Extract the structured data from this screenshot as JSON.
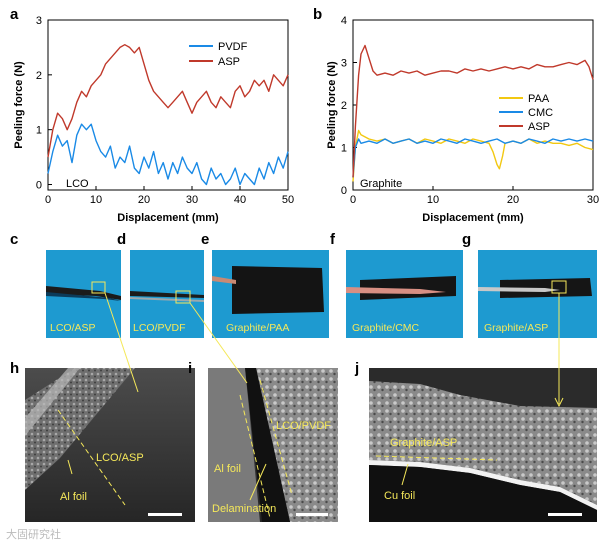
{
  "panels": {
    "a": "a",
    "b": "b",
    "c": "c",
    "d": "d",
    "e": "e",
    "f": "f",
    "g": "g",
    "h": "h",
    "i": "i",
    "j": "j"
  },
  "photos": {
    "c": "LCO/ASP",
    "d": "LCO/PVDF",
    "e": "Graphite/PAA",
    "f": "Graphite/CMC",
    "g": "Graphite/ASP"
  },
  "sem": {
    "h": {
      "film": "LCO/ASP",
      "foil": "Al foil"
    },
    "i": {
      "film": "LCO/PVDF",
      "foil": "Al foil",
      "note": "Delamination"
    },
    "j": {
      "film": "Graphite/ASP",
      "foil": "Cu foil"
    }
  },
  "watermark": "大固研究社",
  "colors": {
    "blue": "#1a8ae6",
    "red": "#c0392b",
    "yellow": "#f2c811",
    "photo_bg": "#1e9ad0"
  },
  "chart_data": [
    {
      "id": "a",
      "type": "line",
      "xlabel": "Displacement (mm)",
      "ylabel": "Peeling force (N)",
      "xlim": [
        0,
        50
      ],
      "ylim": [
        -0.1,
        3
      ],
      "xticks": [
        0,
        10,
        20,
        30,
        40,
        50
      ],
      "yticks": [
        0,
        1,
        2,
        3
      ],
      "annotation": "LCO",
      "legend_position": "top-right",
      "series": [
        {
          "name": "PVDF",
          "color": "#1a8ae6",
          "x": [
            0,
            1,
            2,
            3,
            4,
            5,
            6,
            7,
            8,
            9,
            10,
            11,
            12,
            13,
            14,
            15,
            16,
            17,
            18,
            19,
            20,
            21,
            22,
            23,
            24,
            25,
            26,
            27,
            28,
            29,
            30,
            31,
            32,
            33,
            34,
            35,
            36,
            37,
            38,
            39,
            40,
            41,
            42,
            43,
            44,
            45,
            46,
            47,
            48,
            49,
            50
          ],
          "y": [
            0.2,
            0.6,
            0.9,
            0.7,
            0.8,
            0.4,
            0.9,
            1.1,
            1.0,
            1.1,
            0.8,
            0.6,
            0.5,
            0.7,
            0.3,
            0.5,
            0.4,
            0.7,
            0.3,
            0.2,
            0.5,
            0.3,
            0.6,
            0.2,
            0.4,
            0.1,
            0.4,
            0.2,
            0.5,
            0.3,
            0.2,
            0.4,
            0.1,
            0.0,
            0.3,
            0.1,
            0.2,
            0.0,
            0.1,
            0.3,
            0.0,
            0.2,
            0.1,
            0.0,
            0.3,
            0.1,
            0.4,
            0.2,
            0.5,
            0.3,
            0.6
          ]
        },
        {
          "name": "ASP",
          "color": "#c0392b",
          "x": [
            0,
            1,
            2,
            3,
            4,
            5,
            6,
            7,
            8,
            9,
            10,
            11,
            12,
            13,
            14,
            15,
            16,
            17,
            18,
            19,
            20,
            21,
            22,
            23,
            24,
            25,
            26,
            27,
            28,
            29,
            30,
            31,
            32,
            33,
            34,
            35,
            36,
            37,
            38,
            39,
            40,
            41,
            42,
            43,
            44,
            45,
            46,
            47,
            48,
            49,
            50
          ],
          "y": [
            0.5,
            1.0,
            1.3,
            1.2,
            1.0,
            1.2,
            1.5,
            1.7,
            1.6,
            1.8,
            1.9,
            2.0,
            2.2,
            2.3,
            2.4,
            2.5,
            2.55,
            2.5,
            2.4,
            2.5,
            2.2,
            1.9,
            1.7,
            1.6,
            1.5,
            1.4,
            1.5,
            1.6,
            1.7,
            1.5,
            1.3,
            1.5,
            1.6,
            1.7,
            1.5,
            1.4,
            1.6,
            1.5,
            1.4,
            1.7,
            1.8,
            1.6,
            1.7,
            1.9,
            1.8,
            1.9,
            1.7,
            2.0,
            1.9,
            1.8,
            2.0
          ]
        }
      ]
    },
    {
      "id": "b",
      "type": "line",
      "xlabel": "Displacement (mm)",
      "ylabel": "Peeling force (N)",
      "xlim": [
        0,
        30
      ],
      "ylim": [
        0,
        4
      ],
      "xticks": [
        0,
        10,
        20,
        30
      ],
      "yticks": [
        0,
        1,
        2,
        3,
        4
      ],
      "annotation": "Graphite",
      "legend_position": "center-right",
      "series": [
        {
          "name": "PAA",
          "color": "#f2c811",
          "x": [
            0,
            0.3,
            0.7,
            1,
            2,
            3,
            4,
            5,
            6,
            7,
            8,
            9,
            10,
            11,
            12,
            13,
            14,
            15,
            16,
            17,
            17.5,
            18,
            18.3,
            18.7,
            19,
            20,
            21,
            22,
            23,
            24,
            25,
            26,
            27,
            28,
            29,
            30
          ],
          "y": [
            0.2,
            1.0,
            1.4,
            1.3,
            1.2,
            1.15,
            1.2,
            1.1,
            1.15,
            1.2,
            1.1,
            1.2,
            1.15,
            1.1,
            1.2,
            1.15,
            1.1,
            1.2,
            1.15,
            1.1,
            0.9,
            0.6,
            0.5,
            0.8,
            1.1,
            1.15,
            1.1,
            1.2,
            1.1,
            1.15,
            1.1,
            1.1,
            1.05,
            1.1,
            1.0,
            0.95
          ]
        },
        {
          "name": "CMC",
          "color": "#1a8ae6",
          "x": [
            0,
            0.3,
            0.7,
            1,
            2,
            3,
            4,
            5,
            6,
            7,
            8,
            9,
            10,
            11,
            12,
            13,
            14,
            15,
            16,
            17,
            18,
            19,
            20,
            21,
            22,
            23,
            24,
            25,
            26,
            27,
            28,
            29,
            30
          ],
          "y": [
            0.3,
            1.0,
            1.2,
            1.1,
            1.15,
            1.1,
            1.2,
            1.1,
            1.15,
            1.2,
            1.1,
            1.15,
            1.1,
            1.2,
            1.15,
            1.1,
            1.2,
            1.15,
            1.1,
            1.15,
            1.2,
            1.1,
            1.15,
            1.1,
            1.2,
            1.15,
            1.1,
            1.2,
            1.15,
            1.2,
            1.15,
            1.2,
            1.15
          ]
        },
        {
          "name": "ASP",
          "color": "#c0392b",
          "x": [
            0,
            0.3,
            0.7,
            1,
            1.5,
            2,
            2.5,
            3,
            4,
            5,
            6,
            7,
            8,
            9,
            10,
            11,
            12,
            13,
            14,
            15,
            16,
            17,
            18,
            19,
            20,
            21,
            22,
            23,
            24,
            25,
            26,
            27,
            28,
            29,
            29.5,
            30
          ],
          "y": [
            0.3,
            1.5,
            2.7,
            3.2,
            3.4,
            3.1,
            2.8,
            2.7,
            2.75,
            2.7,
            2.8,
            2.75,
            2.8,
            2.7,
            2.75,
            2.8,
            2.8,
            2.75,
            2.85,
            2.8,
            2.85,
            2.8,
            2.85,
            2.9,
            2.85,
            2.9,
            2.85,
            2.95,
            2.9,
            2.9,
            2.95,
            3.0,
            2.95,
            3.05,
            2.9,
            2.6
          ]
        }
      ]
    }
  ]
}
